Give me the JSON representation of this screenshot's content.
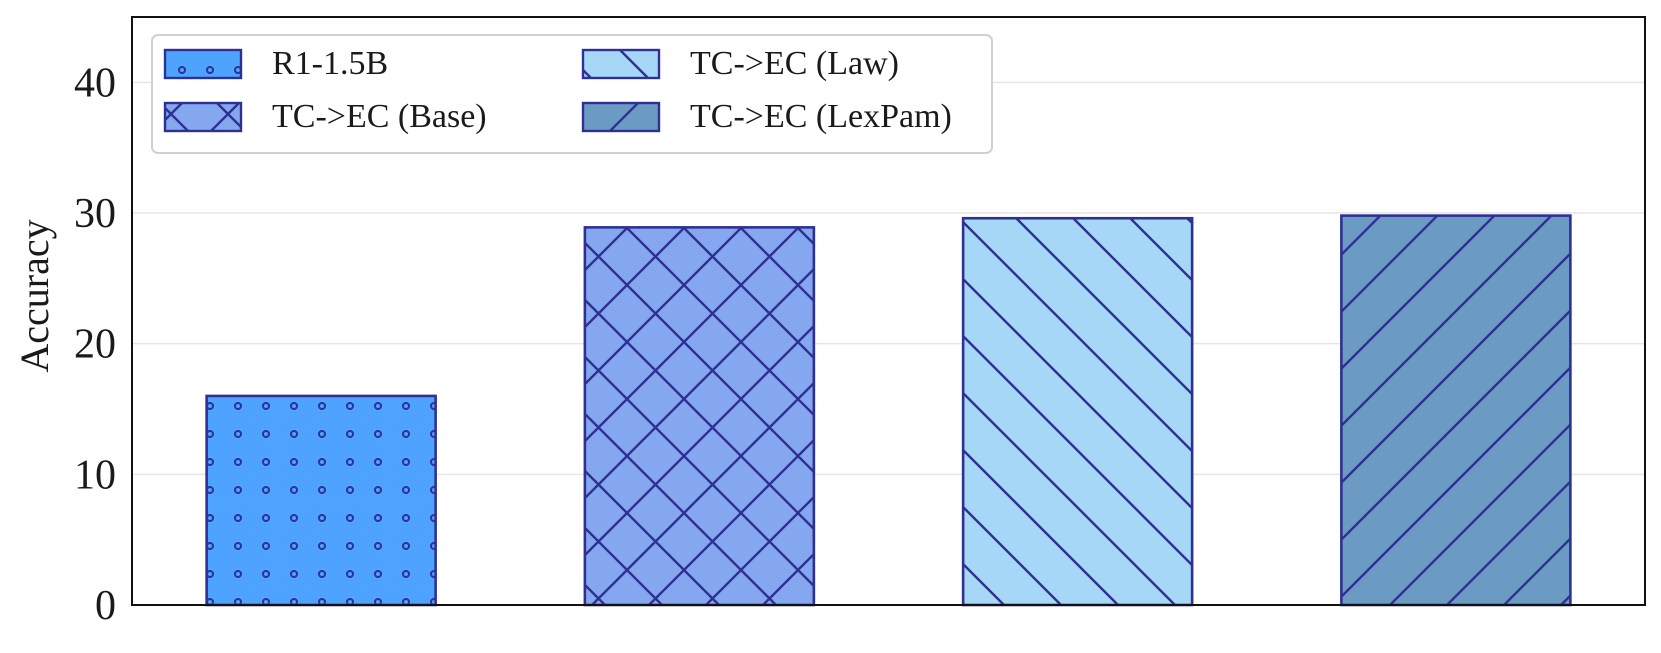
{
  "chart_data": {
    "type": "bar",
    "categories": [
      "R1-1.5B",
      "TC->EC (Base)",
      "TC->EC (Law)",
      "TC->EC (LexPam)"
    ],
    "values": [
      16.0,
      28.9,
      29.6,
      29.8
    ],
    "ylabel": "Accuracy",
    "xlabel": "",
    "ylim": [
      0,
      45
    ],
    "yticks": [
      0,
      10,
      20,
      30,
      40
    ],
    "grid": "horizontal",
    "legend": {
      "placement": "top-left",
      "columns": 2,
      "entries": [
        {
          "label": "R1-1.5B",
          "color": "#4da3ff",
          "hatch": "dots"
        },
        {
          "label": "TC->EC (Base)",
          "color": "#85a7ef",
          "hatch": "cross"
        },
        {
          "label": "TC->EC (Law)",
          "color": "#a6d7f7",
          "hatch": "backslash"
        },
        {
          "label": "TC->EC (LexPam)",
          "color": "#6b9ac3",
          "hatch": "slash"
        }
      ]
    },
    "edge_color": "#2e3192"
  }
}
